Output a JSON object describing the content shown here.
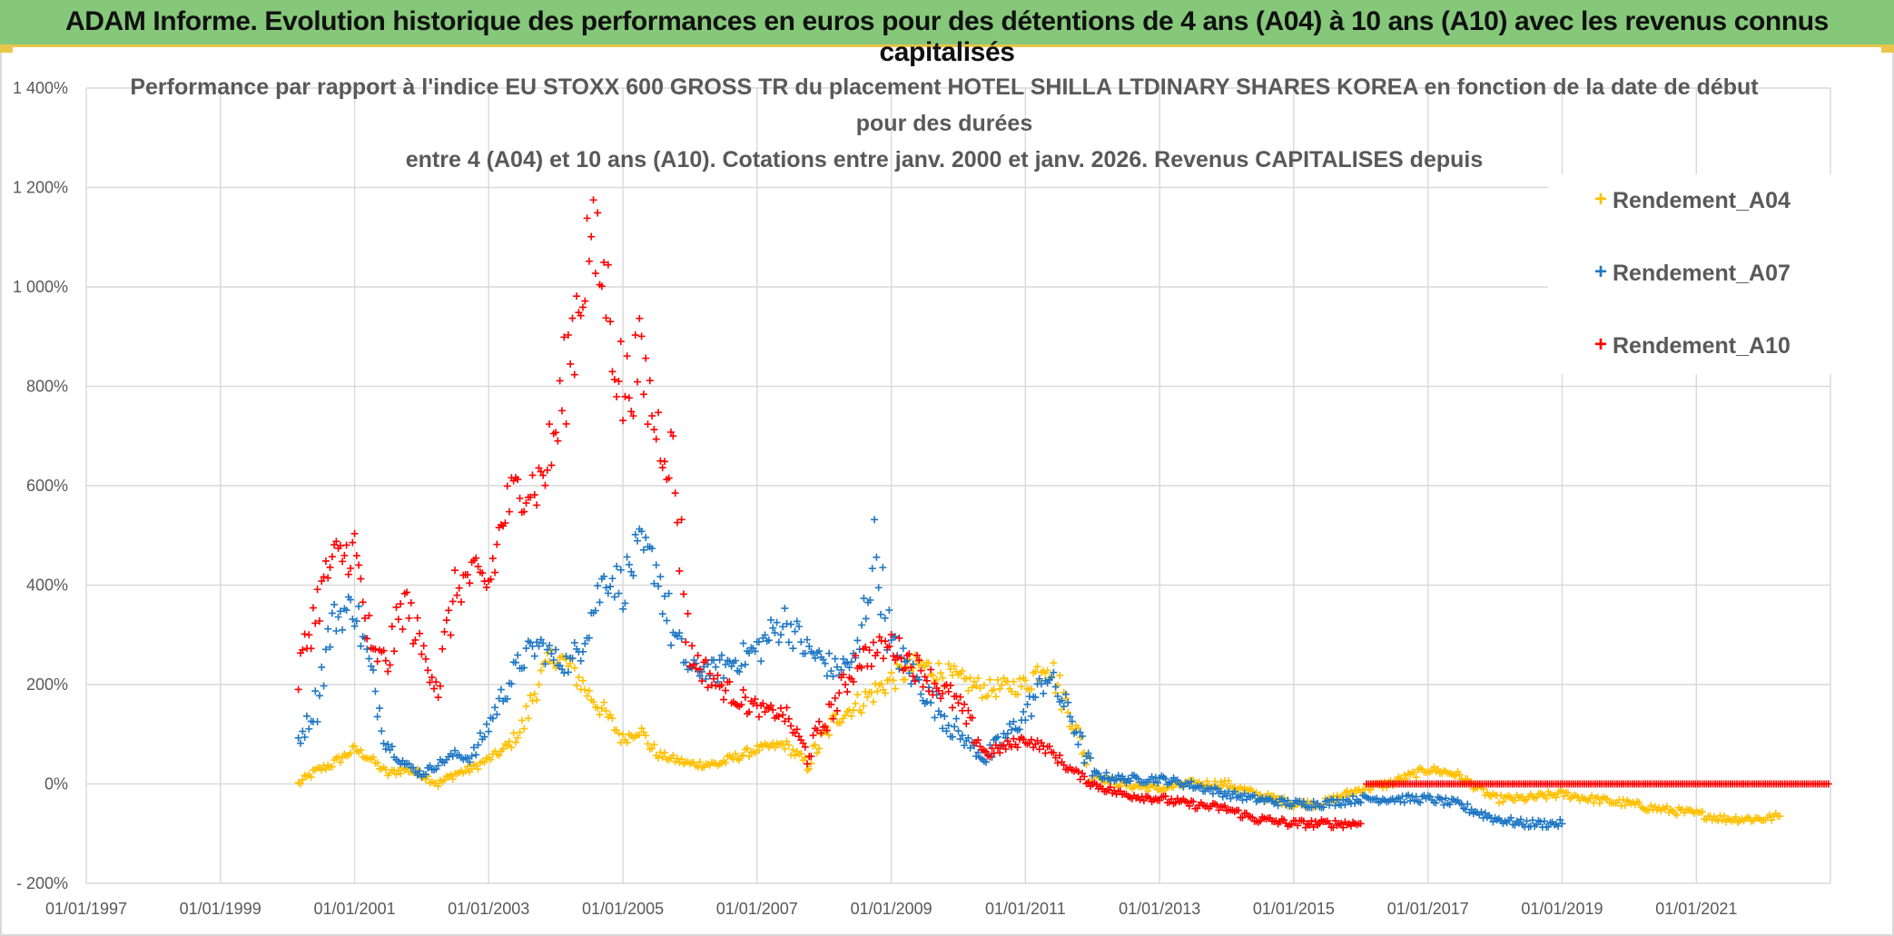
{
  "header": {
    "title": "ADAM Informe. Evolution historique des performances en euros pour des détentions de 4 ans (A04) à 10 ans (A10) avec les revenus connus capitalisés"
  },
  "colors": {
    "banner": "#86c87a",
    "banner_accent": "#e9c64a",
    "A04": "#ffc000",
    "A07": "#1f77c4",
    "A10": "#ff0000",
    "grid": "#d9d9d9",
    "text": "#595959"
  },
  "chart_data": {
    "type": "scatter",
    "title_lines": [
      "Performance par rapport à l'indice EU STOXX 600 GROSS TR  du placement HOTEL SHILLA LTDINARY SHARES KOREA en fonction de la date de début",
      "pour des durées",
      "entre 4 (A04) et 10 ans (A10). Cotations entre janv. 2000 et janv. 2026. Revenus CAPITALISES depuis"
    ],
    "x_ticks": [
      "01/01/1997",
      "01/01/1999",
      "01/01/2001",
      "01/01/2003",
      "01/01/2005",
      "01/01/2007",
      "01/01/2009",
      "01/01/2011",
      "01/01/2013",
      "01/01/2015",
      "01/01/2017",
      "01/01/2019",
      "01/01/2021"
    ],
    "xlim": [
      "1997-01-01",
      "2023-01-01"
    ],
    "y_ticks": [
      "- 200%",
      "0%",
      "200%",
      "400%",
      "600%",
      "800%",
      "1 000%",
      "1 200%",
      "1 400%"
    ],
    "ylim": [
      -200,
      1400
    ],
    "y_unit": "%",
    "legend_position": "top-right",
    "marker": "+",
    "series": [
      {
        "name": "Rendement_A04",
        "points": [
          [
            "2000-03-01",
            0
          ],
          [
            "2000-06-01",
            25
          ],
          [
            "2000-09-01",
            40
          ],
          [
            "2001-01-01",
            70
          ],
          [
            "2001-04-01",
            50
          ],
          [
            "2001-07-01",
            20
          ],
          [
            "2001-10-01",
            30
          ],
          [
            "2002-01-01",
            20
          ],
          [
            "2002-04-01",
            0
          ],
          [
            "2002-07-01",
            20
          ],
          [
            "2002-10-01",
            30
          ],
          [
            "2003-01-01",
            50
          ],
          [
            "2003-04-01",
            70
          ],
          [
            "2003-07-01",
            110
          ],
          [
            "2003-10-01",
            210
          ],
          [
            "2004-01-01",
            260
          ],
          [
            "2004-04-01",
            230
          ],
          [
            "2004-07-01",
            180
          ],
          [
            "2004-10-01",
            140
          ],
          [
            "2005-01-01",
            90
          ],
          [
            "2005-04-01",
            110
          ],
          [
            "2005-07-01",
            60
          ],
          [
            "2005-10-01",
            50
          ],
          [
            "2006-01-01",
            40
          ],
          [
            "2006-06-01",
            40
          ],
          [
            "2007-01-01",
            70
          ],
          [
            "2007-06-01",
            80
          ],
          [
            "2007-10-01",
            40
          ],
          [
            "2008-03-01",
            130
          ],
          [
            "2008-07-01",
            160
          ],
          [
            "2009-01-01",
            210
          ],
          [
            "2009-06-01",
            240
          ],
          [
            "2010-01-01",
            210
          ],
          [
            "2010-06-01",
            190
          ],
          [
            "2011-01-01",
            200
          ],
          [
            "2011-05-01",
            250
          ],
          [
            "2011-09-01",
            140
          ],
          [
            "2012-01-01",
            20
          ],
          [
            "2012-06-01",
            0
          ],
          [
            "2013-01-01",
            -10
          ],
          [
            "2013-06-01",
            0
          ],
          [
            "2014-01-01",
            0
          ],
          [
            "2014-06-01",
            -20
          ],
          [
            "2015-01-01",
            -40
          ],
          [
            "2015-06-01",
            -40
          ],
          [
            "2016-01-01",
            -10
          ],
          [
            "2016-06-01",
            0
          ],
          [
            "2017-01-01",
            30
          ],
          [
            "2017-06-01",
            20
          ],
          [
            "2018-01-01",
            -30
          ],
          [
            "2018-06-01",
            -30
          ],
          [
            "2019-01-01",
            -20
          ],
          [
            "2019-06-01",
            -30
          ],
          [
            "2020-01-01",
            -40
          ],
          [
            "2020-06-01",
            -50
          ],
          [
            "2021-01-01",
            -60
          ],
          [
            "2021-06-01",
            -70
          ],
          [
            "2022-01-01",
            -70
          ],
          [
            "2022-04-01",
            -65
          ]
        ]
      },
      {
        "name": "Rendement_A07",
        "points": [
          [
            "2000-03-01",
            90
          ],
          [
            "2000-06-01",
            150
          ],
          [
            "2000-09-01",
            330
          ],
          [
            "2001-01-01",
            360
          ],
          [
            "2001-04-01",
            220
          ],
          [
            "2001-07-01",
            80
          ],
          [
            "2001-10-01",
            40
          ],
          [
            "2002-01-01",
            20
          ],
          [
            "2002-04-01",
            40
          ],
          [
            "2002-07-01",
            60
          ],
          [
            "2002-10-01",
            50
          ],
          [
            "2003-01-01",
            120
          ],
          [
            "2003-04-01",
            190
          ],
          [
            "2003-07-01",
            250
          ],
          [
            "2003-10-01",
            280
          ],
          [
            "2004-01-01",
            250
          ],
          [
            "2004-04-01",
            240
          ],
          [
            "2004-07-01",
            330
          ],
          [
            "2004-10-01",
            420
          ],
          [
            "2005-01-01",
            400
          ],
          [
            "2005-04-01",
            470
          ],
          [
            "2005-07-01",
            440
          ],
          [
            "2005-10-01",
            300
          ],
          [
            "2006-01-01",
            230
          ],
          [
            "2006-06-01",
            230
          ],
          [
            "2007-01-01",
            270
          ],
          [
            "2007-06-01",
            330
          ],
          [
            "2007-10-01",
            270
          ],
          [
            "2008-03-01",
            230
          ],
          [
            "2008-07-01",
            250
          ],
          [
            "2008-10-01",
            480
          ],
          [
            "2009-01-01",
            280
          ],
          [
            "2009-06-01",
            200
          ],
          [
            "2010-01-01",
            100
          ],
          [
            "2010-06-01",
            50
          ],
          [
            "2011-01-01",
            140
          ],
          [
            "2011-05-01",
            220
          ],
          [
            "2011-09-01",
            140
          ],
          [
            "2012-01-01",
            20
          ],
          [
            "2012-06-01",
            10
          ],
          [
            "2013-01-01",
            10
          ],
          [
            "2013-06-01",
            0
          ],
          [
            "2014-01-01",
            -20
          ],
          [
            "2014-06-01",
            -30
          ],
          [
            "2015-01-01",
            -40
          ],
          [
            "2015-06-01",
            -40
          ],
          [
            "2016-01-01",
            -30
          ],
          [
            "2016-06-01",
            -30
          ],
          [
            "2017-01-01",
            -30
          ],
          [
            "2017-06-01",
            -40
          ],
          [
            "2018-01-01",
            -70
          ],
          [
            "2018-06-01",
            -80
          ],
          [
            "2019-01-01",
            -80
          ]
        ]
      },
      {
        "name": "Rendement_A10",
        "points": [
          [
            "2000-03-01",
            220
          ],
          [
            "2000-06-01",
            350
          ],
          [
            "2000-09-01",
            450
          ],
          [
            "2001-01-01",
            470
          ],
          [
            "2001-04-01",
            260
          ],
          [
            "2001-07-01",
            250
          ],
          [
            "2001-10-01",
            370
          ],
          [
            "2002-01-01",
            270
          ],
          [
            "2002-04-01",
            200
          ],
          [
            "2002-07-01",
            390
          ],
          [
            "2002-10-01",
            420
          ],
          [
            "2003-01-01",
            400
          ],
          [
            "2003-04-01",
            550
          ],
          [
            "2003-07-01",
            600
          ],
          [
            "2003-10-01",
            600
          ],
          [
            "2004-01-01",
            700
          ],
          [
            "2004-04-01",
            900
          ],
          [
            "2004-07-01",
            1100
          ],
          [
            "2004-10-01",
            1000
          ],
          [
            "2005-01-01",
            780
          ],
          [
            "2005-04-01",
            850
          ],
          [
            "2005-07-01",
            720
          ],
          [
            "2005-10-01",
            650
          ],
          [
            "2006-01-01",
            260
          ],
          [
            "2006-06-01",
            200
          ],
          [
            "2007-01-01",
            150
          ],
          [
            "2007-06-01",
            140
          ],
          [
            "2007-10-01",
            60
          ],
          [
            "2008-03-01",
            160
          ],
          [
            "2008-07-01",
            250
          ],
          [
            "2009-01-01",
            280
          ],
          [
            "2009-06-01",
            230
          ],
          [
            "2010-01-01",
            160
          ],
          [
            "2010-06-01",
            60
          ],
          [
            "2011-01-01",
            90
          ],
          [
            "2011-05-01",
            70
          ],
          [
            "2011-09-01",
            30
          ],
          [
            "2012-01-01",
            0
          ],
          [
            "2012-06-01",
            -20
          ],
          [
            "2013-01-01",
            -30
          ],
          [
            "2013-06-01",
            -40
          ],
          [
            "2014-01-01",
            -50
          ],
          [
            "2014-06-01",
            -70
          ],
          [
            "2015-01-01",
            -80
          ],
          [
            "2015-06-01",
            -80
          ],
          [
            "2016-01-01",
            -80
          ]
        ]
      }
    ],
    "flat_segment": {
      "series": "Rendement_A10",
      "from": "2016-02-01",
      "to": "2022-12-31",
      "value": 0
    }
  }
}
